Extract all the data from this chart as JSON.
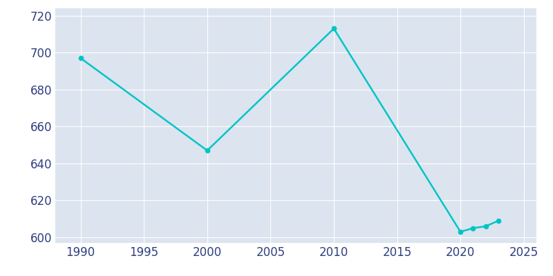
{
  "years": [
    1990,
    2000,
    2010,
    2020,
    2021,
    2022,
    2023
  ],
  "population": [
    697,
    647,
    713,
    603,
    605,
    606,
    609
  ],
  "line_color": "#00C5C5",
  "marker_color": "#00C5C5",
  "plot_bg_color": "#DCE4EF",
  "fig_bg_color": "#FFFFFF",
  "grid_color": "#FFFFFF",
  "xlim": [
    1988,
    2026
  ],
  "ylim": [
    597,
    724
  ],
  "yticks": [
    600,
    620,
    640,
    660,
    680,
    700,
    720
  ],
  "xticks": [
    1990,
    1995,
    2000,
    2005,
    2010,
    2015,
    2020,
    2025
  ],
  "linewidth": 1.8,
  "markersize": 4.5,
  "tick_color": "#2E3F7F",
  "tick_labelsize": 12,
  "figsize": [
    8.0,
    4.0
  ],
  "dpi": 100
}
